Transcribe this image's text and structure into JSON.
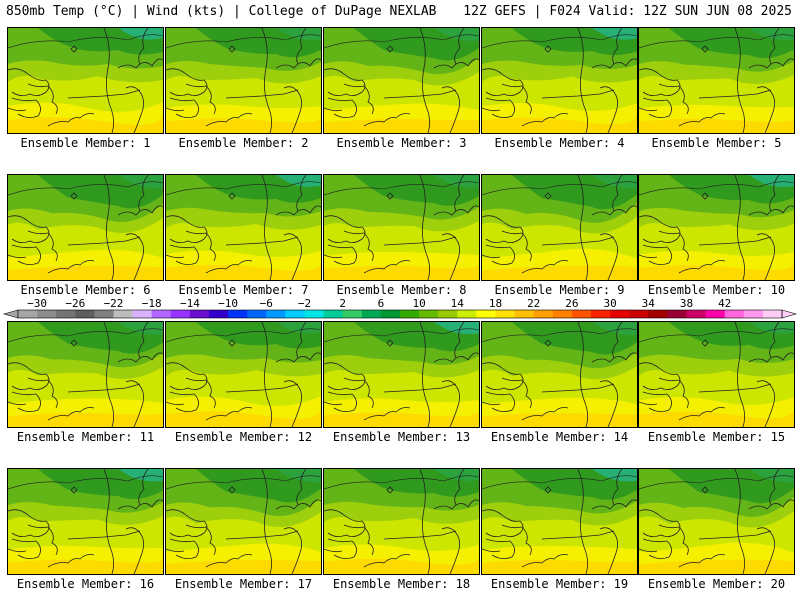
{
  "header": {
    "left": "850mb Temp (°C) | Wind (kts) | College of DuPage NEXLAB",
    "right": "12Z GEFS | F024 Valid: 12Z SUN JUN 08 2025"
  },
  "members": [
    "Ensemble Member: 1",
    "Ensemble Member: 2",
    "Ensemble Member: 3",
    "Ensemble Member: 4",
    "Ensemble Member: 5",
    "Ensemble Member: 6",
    "Ensemble Member: 7",
    "Ensemble Member: 8",
    "Ensemble Member: 9",
    "Ensemble Member: 10",
    "Ensemble Member: 11",
    "Ensemble Member: 12",
    "Ensemble Member: 13",
    "Ensemble Member: 14",
    "Ensemble Member: 15",
    "Ensemble Member: 16",
    "Ensemble Member: 17",
    "Ensemble Member: 18",
    "Ensemble Member: 19",
    "Ensemble Member: 20"
  ],
  "colorbar": {
    "labels": [
      "−30",
      "−26",
      "−22",
      "−18",
      "−14",
      "−10",
      "−6",
      "−2",
      "2",
      "6",
      "10",
      "14",
      "18",
      "22",
      "26",
      "30",
      "34",
      "38",
      "42"
    ],
    "colors": [
      "#a6a6a6",
      "#8c8c8c",
      "#737373",
      "#5e5e5e",
      "#7f7f7f",
      "#bdbdbd",
      "#d9b3ff",
      "#b266ff",
      "#9933ff",
      "#6a0dcc",
      "#3300cc",
      "#0033ff",
      "#0066ff",
      "#0099ff",
      "#00ccff",
      "#00e5e5",
      "#00cc99",
      "#33cc66",
      "#00aa55",
      "#009933",
      "#33aa00",
      "#66bb00",
      "#99cc00",
      "#ccee00",
      "#ffff00",
      "#ffe000",
      "#ffc000",
      "#ffa000",
      "#ff7f00",
      "#ff5500",
      "#ff2200",
      "#e60000",
      "#cc0000",
      "#a30000",
      "#990033",
      "#cc0066",
      "#ff00aa",
      "#ff66dd",
      "#ff99ee",
      "#ffccf5"
    ]
  },
  "colors": {
    "dark_green": "#2f9a1e",
    "mid_green": "#62b417",
    "light_green": "#9dcf0c",
    "yellow_green": "#cde600",
    "yellow": "#f4f000",
    "orange_yellow": "#ffd400",
    "teal": "#27b27e"
  }
}
